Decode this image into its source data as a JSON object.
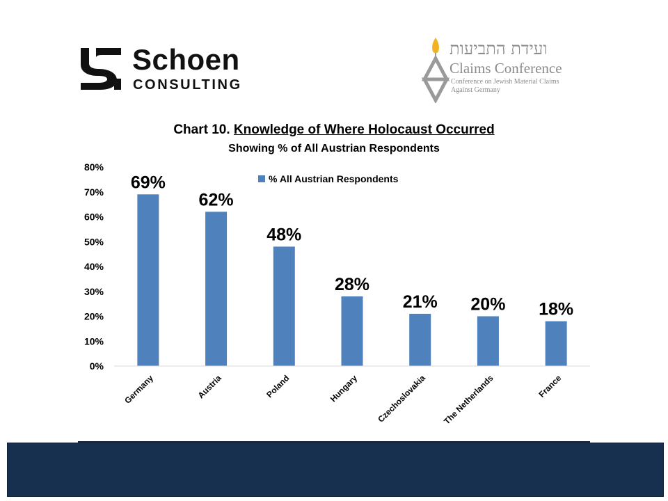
{
  "logos": {
    "schoen": {
      "name": "Schoen",
      "subtitle": "CONSULTING"
    },
    "claims": {
      "hebrew": "ועידת התביעות",
      "name": "Claims Conference",
      "line1": "Conference on Jewish Material Claims",
      "line2": "Against Germany",
      "flame_color": "#f0b323",
      "star_color": "#9a9a9a"
    }
  },
  "chart_data": {
    "type": "bar",
    "title_prefix": "Chart 10. ",
    "title": "Knowledge of Where Holocaust Occurred",
    "subtitle": "Showing % of All Austrian Respondents",
    "categories": [
      "Germany",
      "Austria",
      "Poland",
      "Hungary",
      "Czechoslovakia",
      "The Netherlands",
      "France"
    ],
    "series": [
      {
        "name": "% All Austrian Respondents",
        "values": [
          69,
          62,
          48,
          28,
          21,
          20,
          18
        ],
        "color": "#4f81bd"
      }
    ],
    "data_labels": [
      "69%",
      "62%",
      "48%",
      "28%",
      "21%",
      "20%",
      "18%"
    ],
    "y_ticks": [
      "0%",
      "10%",
      "20%",
      "30%",
      "40%",
      "50%",
      "60%",
      "70%",
      "80%"
    ],
    "ylim": [
      0,
      80
    ],
    "grid": false,
    "legend_position": "top-center",
    "xlabel": "",
    "ylabel": ""
  },
  "colors": {
    "footer_band": "#17304f",
    "bar": "#4f81bd"
  }
}
